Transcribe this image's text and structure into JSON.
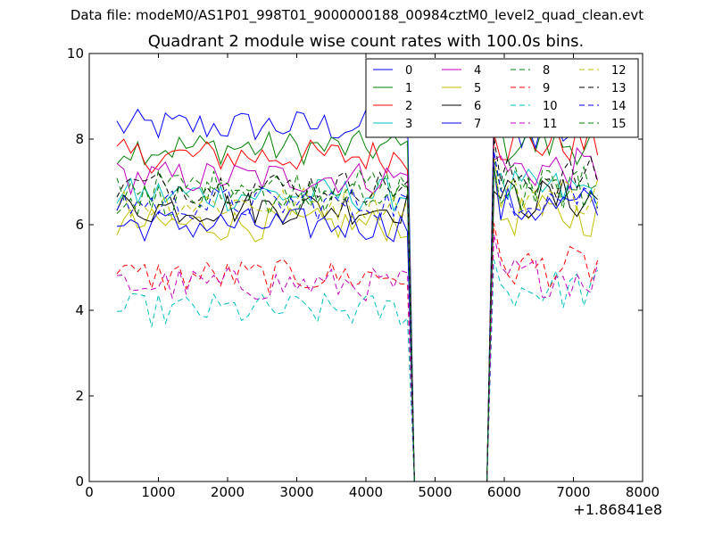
{
  "figure": {
    "suptitle": "Data file: modeM0/AS1P01_998T01_9000000188_00984cztM0_level2_quad_clean.evt",
    "offset_text": "+1.86841e8"
  },
  "chart_data": {
    "type": "line",
    "title": "Quadrant 2 module wise count rates with 100.0s bins.",
    "xlabel": "",
    "ylabel": "",
    "xlim": [
      0,
      8000
    ],
    "ylim": [
      0,
      10
    ],
    "xticks": [
      0,
      1000,
      2000,
      3000,
      4000,
      5000,
      6000,
      7000,
      8000
    ],
    "yticks": [
      0,
      2,
      4,
      6,
      8,
      10
    ],
    "x_offset": "+1.86841e8",
    "legend_location": "top-right",
    "legend_columns": 4,
    "gap": {
      "start": 4700,
      "end": 5750
    },
    "x_range": {
      "first": 400,
      "last_before_gap": 4600,
      "first_after_gap": 5850,
      "last": 7400,
      "step": 100
    },
    "series": [
      {
        "name": "0",
        "color": "#0000ff",
        "dash": "solid",
        "approx_before": 8.3,
        "approx_after": 8.2
      },
      {
        "name": "1",
        "color": "#008000",
        "dash": "solid",
        "approx_before": 7.8,
        "approx_after": 7.9
      },
      {
        "name": "2",
        "color": "#ff0000",
        "dash": "solid",
        "approx_before": 7.6,
        "approx_after": 7.9
      },
      {
        "name": "3",
        "color": "#00bfbf",
        "dash": "solid",
        "approx_before": 6.7,
        "approx_after": 6.8
      },
      {
        "name": "4",
        "color": "#bf00bf",
        "dash": "solid",
        "approx_before": 7.1,
        "approx_after": 7.3
      },
      {
        "name": "5",
        "color": "#bfbf00",
        "dash": "solid",
        "approx_before": 6.0,
        "approx_after": 6.2
      },
      {
        "name": "6",
        "color": "#000000",
        "dash": "solid",
        "approx_before": 6.4,
        "approx_after": 6.6
      },
      {
        "name": "7",
        "color": "#0000ff",
        "dash": "solid",
        "approx_before": 6.0,
        "approx_after": 6.4
      },
      {
        "name": "8",
        "color": "#008000",
        "dash": "dashed",
        "approx_before": 6.9,
        "approx_after": 7.0
      },
      {
        "name": "9",
        "color": "#ff0000",
        "dash": "dashed",
        "approx_before": 4.8,
        "approx_after": 5.0
      },
      {
        "name": "10",
        "color": "#00bfbf",
        "dash": "dashed",
        "approx_before": 4.0,
        "approx_after": 4.5
      },
      {
        "name": "11",
        "color": "#bf00bf",
        "dash": "dashed",
        "approx_before": 4.6,
        "approx_after": 4.8
      },
      {
        "name": "12",
        "color": "#bfbf00",
        "dash": "dashed",
        "approx_before": 6.5,
        "approx_after": 6.7
      },
      {
        "name": "13",
        "color": "#000000",
        "dash": "dashed",
        "approx_before": 6.9,
        "approx_after": 7.1
      },
      {
        "name": "14",
        "color": "#0000ff",
        "dash": "dashed",
        "approx_before": 6.5,
        "approx_after": 6.7
      },
      {
        "name": "15",
        "color": "#008000",
        "dash": "dashed",
        "approx_before": 6.6,
        "approx_after": 6.8
      }
    ]
  }
}
